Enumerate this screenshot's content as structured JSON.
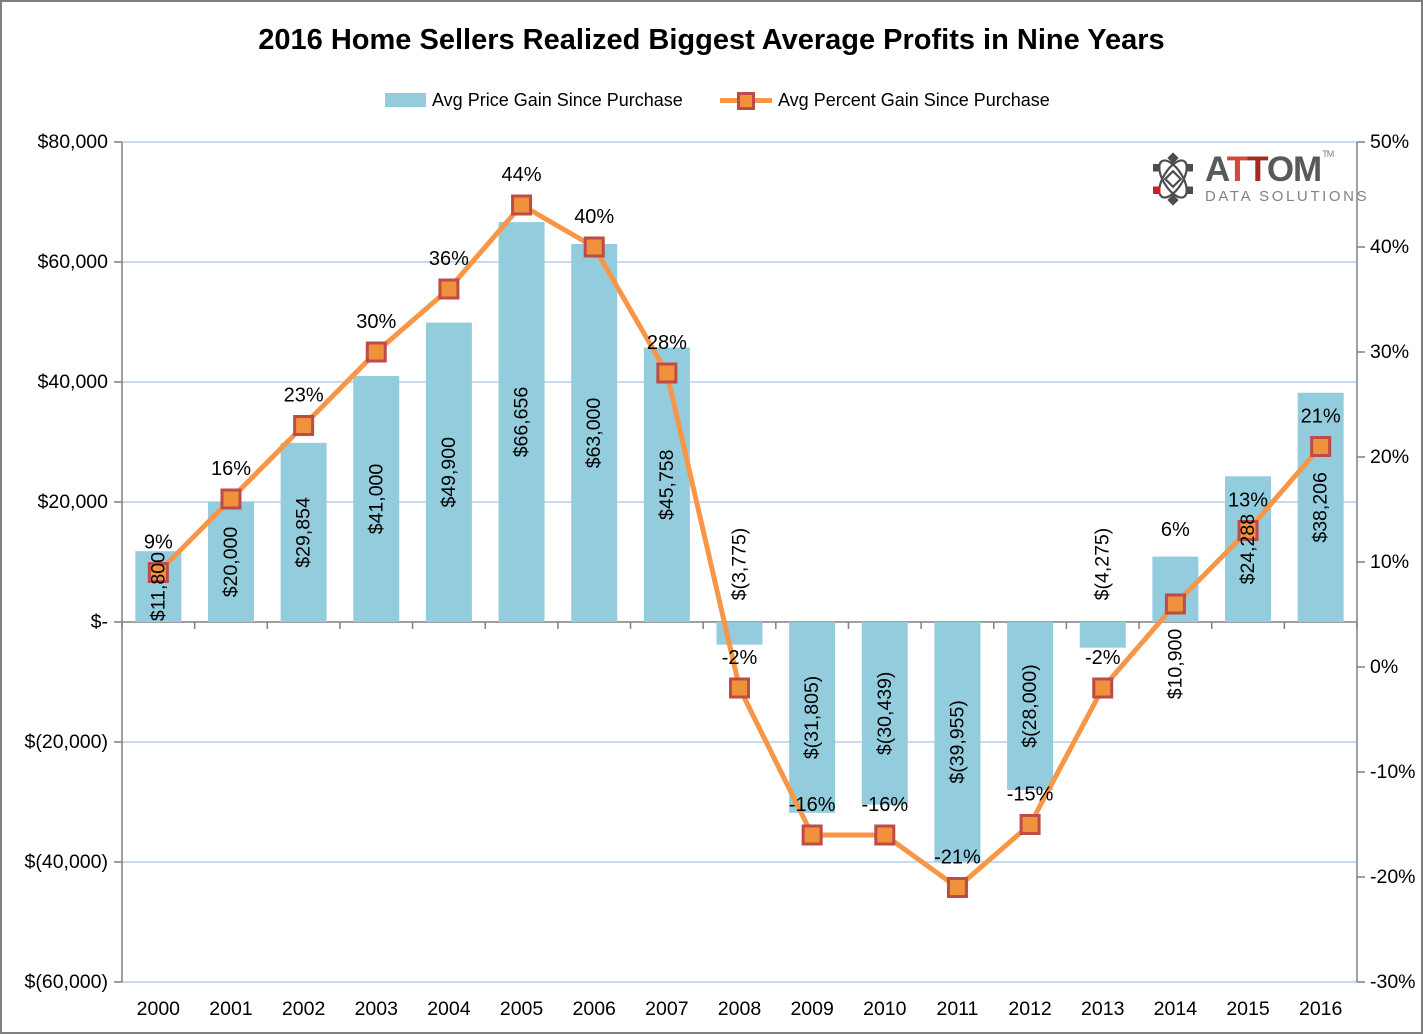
{
  "title": "2016 Home Sellers Realized Biggest Average Profits in Nine Years",
  "logo": {
    "brand_a": "A",
    "brand_t1": "T",
    "brand_t2": "T",
    "brand_om": "OM",
    "tm": "TM",
    "subtitle": "DATA SOLUTIONS"
  },
  "colors": {
    "bar_fill": "#93CDDD",
    "line": "#F79646",
    "marker_fill": "#F0913C",
    "marker_border": "#BE4B48",
    "gridline": "#B9CDE5",
    "axis": "#808080",
    "label_text": "#000000"
  },
  "chart_data": {
    "type": "bar",
    "subtype": "bar-line-combo",
    "title": "2016 Home Sellers Realized Biggest Average Profits in Nine Years",
    "categories": [
      "2000",
      "2001",
      "2002",
      "2003",
      "2004",
      "2005",
      "2006",
      "2007",
      "2008",
      "2009",
      "2010",
      "2011",
      "2012",
      "2013",
      "2014",
      "2015",
      "2016"
    ],
    "series": [
      {
        "name": "Avg Price Gain Since Purchase",
        "type": "bar",
        "axis": "left",
        "values": [
          11800,
          20000,
          29854,
          41000,
          49900,
          66656,
          63000,
          45758,
          -3775,
          -31805,
          -30439,
          -39955,
          -28000,
          -4275,
          10900,
          24288,
          38206
        ],
        "labels": [
          "$11,800",
          "$20,000",
          "$29,854",
          "$41,000",
          "$49,900",
          "$66,656",
          "$63,000",
          "$45,758",
          "$(3,775)",
          "$(31,805)",
          "$(30,439)",
          "$(39,955)",
          "$(28,000)",
          "$(4,275)",
          "$10,900",
          "$24,288",
          "$38,206"
        ]
      },
      {
        "name": "Avg Percent Gain Since Purchase",
        "type": "line",
        "axis": "right",
        "values": [
          9,
          16,
          23,
          30,
          36,
          44,
          40,
          28,
          -2,
          -16,
          -16,
          -21,
          -15,
          -2,
          6,
          13,
          21
        ],
        "labels": [
          "9%",
          "16%",
          "23%",
          "30%",
          "36%",
          "44%",
          "40%",
          "28%",
          "-2%",
          "-16%",
          "-16%",
          "-21%",
          "-15%",
          "-2%",
          "6%",
          "13%",
          "21%"
        ]
      }
    ],
    "left_axis": {
      "tick_labels": [
        "$80,000",
        "$60,000",
        "$40,000",
        "$20,000",
        "$-",
        "$(20,000)",
        "$(40,000)",
        "$(60,000)"
      ],
      "tick_values": [
        80000,
        60000,
        40000,
        20000,
        0,
        -20000,
        -40000,
        -60000
      ],
      "min": -60000,
      "max": 80000
    },
    "right_axis": {
      "tick_labels": [
        "50%",
        "40%",
        "30%",
        "20%",
        "10%",
        "0%",
        "-10%",
        "-20%",
        "-30%"
      ],
      "tick_values": [
        50,
        40,
        30,
        20,
        10,
        0,
        -10,
        -20,
        -30
      ],
      "min": -30,
      "max": 50
    },
    "grid": true,
    "legend_position": "top"
  }
}
